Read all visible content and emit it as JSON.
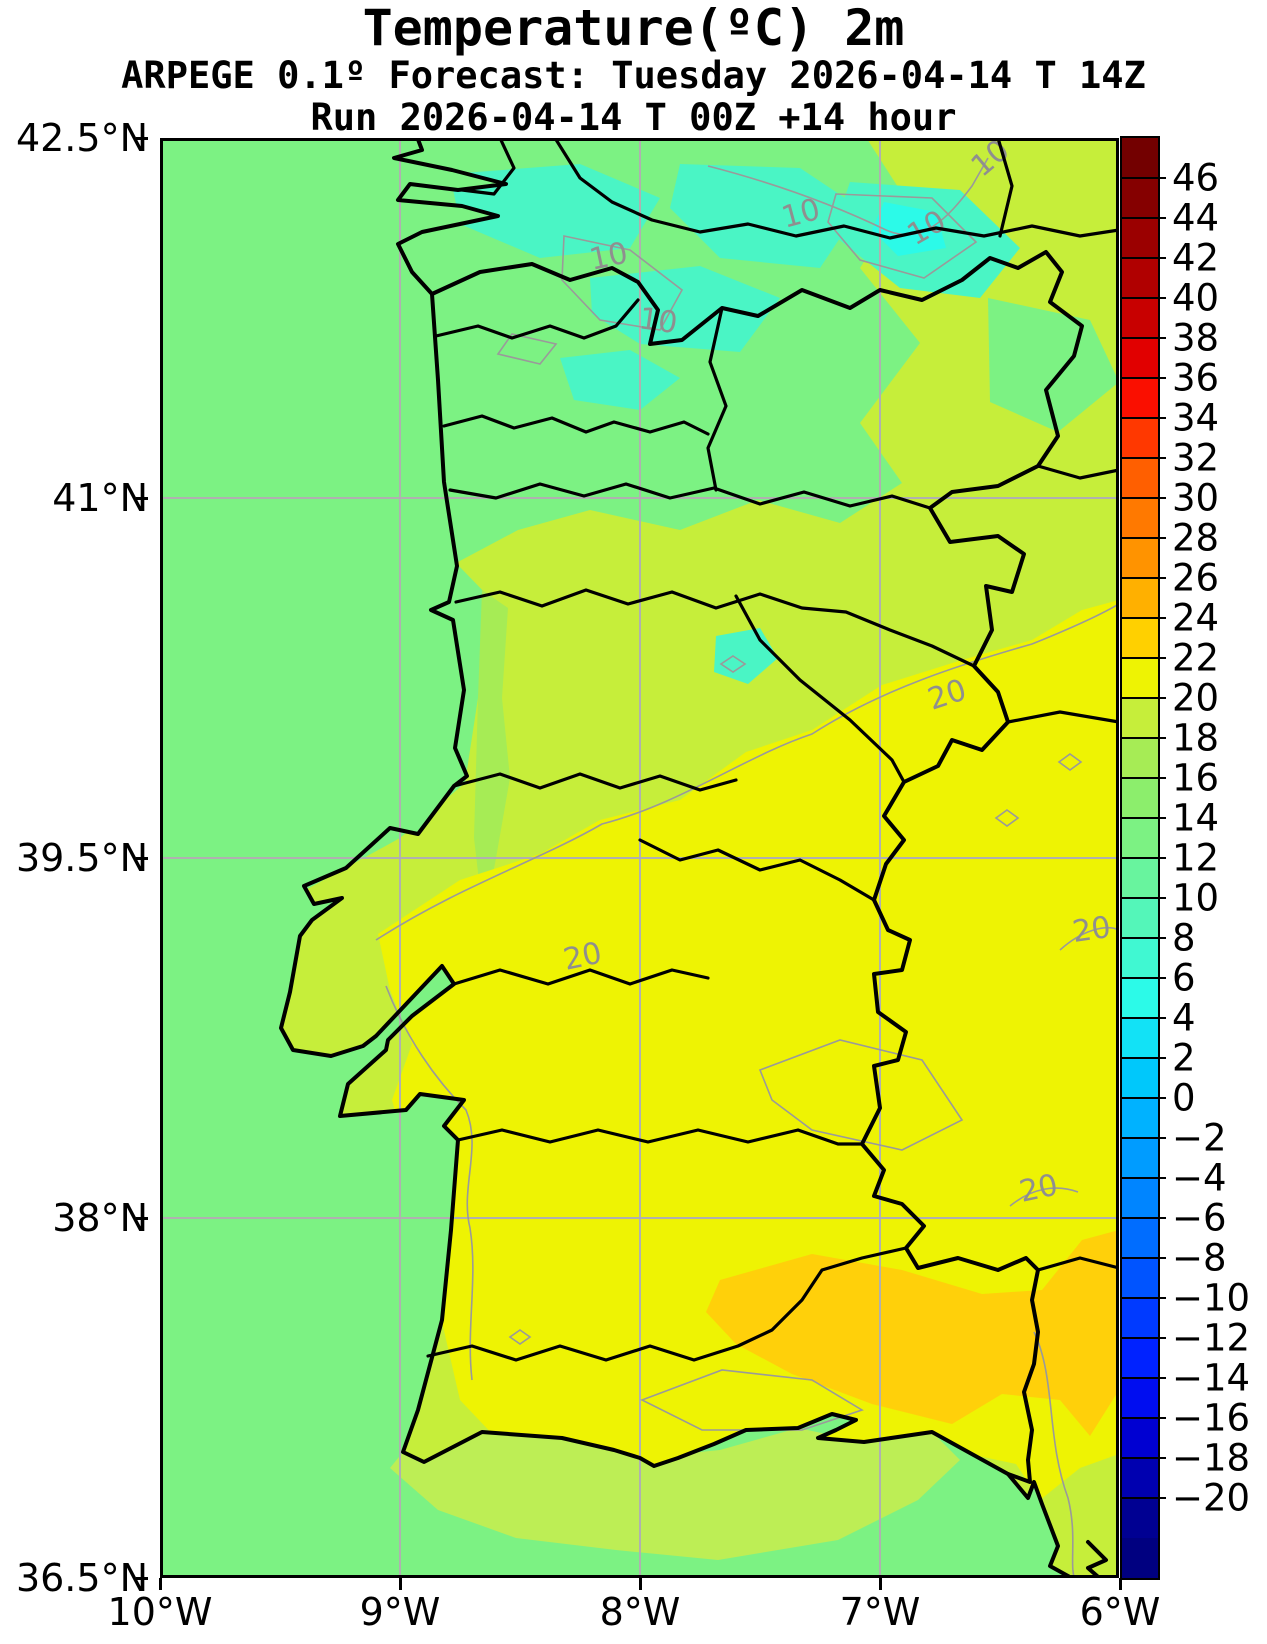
{
  "figure": {
    "title": "Temperature(ºC) 2m",
    "subtitle": "ARPEGE 0.1º Forecast: Tuesday 2026-04-14 T 14Z",
    "run_line": "Run 2026-04-14 T 00Z +14 hour"
  },
  "map": {
    "y_axis": {
      "tick_labels": [
        "42.5°N",
        "41°N",
        "39.5°N",
        "38°N",
        "36.5°N"
      ]
    },
    "x_axis": {
      "tick_labels": [
        "10°W",
        "9°W",
        "8°W",
        "7°W",
        "6°W"
      ]
    },
    "contour_levels": {
      "north": "10",
      "south": "20"
    }
  },
  "colorbar": {
    "tick_values": [
      46,
      44,
      42,
      40,
      38,
      36,
      34,
      32,
      30,
      28,
      26,
      24,
      22,
      20,
      18,
      16,
      14,
      12,
      10,
      8,
      6,
      4,
      2,
      0,
      -2,
      -4,
      -6,
      -8,
      -10,
      -12,
      -14,
      -16,
      -18,
      -20
    ],
    "segment_colors": [
      "#730000",
      "#850000",
      "#9b0000",
      "#b00000",
      "#c80000",
      "#e10000",
      "#fa0f00",
      "#ff3800",
      "#ff5f00",
      "#ff7900",
      "#ff9300",
      "#ffb000",
      "#ffd000",
      "#eef303",
      "#c6ee3a",
      "#a6ec55",
      "#8cee6c",
      "#7cf283",
      "#68f49e",
      "#54f6b9",
      "#40f8d2",
      "#2cfae8",
      "#12e2f6",
      "#00c8fb",
      "#00b2ff",
      "#009cff",
      "#0085ff",
      "#006dff",
      "#0054ff",
      "#003aff",
      "#0022ff",
      "#000df0",
      "#0000d2",
      "#0000b0",
      "#000092",
      "#000080"
    ]
  },
  "palette": {
    "ocean_green": "#7cf283",
    "yellow_green_land": "#c6ee3a",
    "light_green": "#a6ec55",
    "warm_yellow": "#eef303",
    "gold_patch": "#ffd00a",
    "teal_patch": "#4af5c5",
    "cyan_patch": "#2cfae8",
    "gridline_gray": "#b0b0b0",
    "contour_gray": "#9a9a9a",
    "boundary_black": "#000000"
  },
  "chart_data": {
    "type": "heatmap",
    "title": "Temperature(ºC) 2m",
    "model": "ARPEGE 0.1º",
    "valid_time": "Tuesday 2026-04-14 T 14Z",
    "run_time": "2026-04-14 T 00Z",
    "lead_time": "+14 hour",
    "variable": "2 m air temperature (ºC)",
    "region": "Portugal and western Iberia",
    "x_axis": {
      "tick_labels": [
        "10°W",
        "9°W",
        "8°W",
        "7°W",
        "6°W"
      ],
      "lon_range": [
        "10°W",
        "6°W"
      ]
    },
    "y_axis": {
      "tick_labels": [
        "42.5°N",
        "41°N",
        "39.5°N",
        "38°N",
        "36.5°N"
      ],
      "lat_range": [
        "36.5°N",
        "42.5°N"
      ]
    },
    "gridline_lons": [
      "9°W",
      "8°W",
      "7°W"
    ],
    "gridline_lats": [
      "41°N",
      "39.5°N",
      "38°N"
    ],
    "colorbar": {
      "units": "ºC",
      "tick_min": -20,
      "tick_max": 46,
      "tick_step": 2
    },
    "contour_line_levels_degC": [
      10,
      20
    ],
    "field_estimates_degC": [
      {
        "area": "Atlantic Ocean west of coast",
        "value_range": [
          12,
          14
        ]
      },
      {
        "area": "Galicia / northern interior highlands (10 ºC contour pockets)",
        "value_range": [
          8,
          12
        ]
      },
      {
        "area": "Northwest Iberia general land",
        "value_range": [
          12,
          16
        ]
      },
      {
        "area": "Central Portugal and northern Extremadura",
        "value_range": [
          16,
          20
        ]
      },
      {
        "area": "Alentejo, southern Extremadura, interior Andalucía (inside 20 ºC contour)",
        "value_range": [
          20,
          22
        ]
      },
      {
        "area": "Guadalquivir valley, southeast corner (gold patches)",
        "value_range": [
          22,
          26
        ]
      },
      {
        "area": "Sea south of Algarve coast, nearshore band",
        "value_range": [
          14,
          18
        ]
      }
    ]
  }
}
